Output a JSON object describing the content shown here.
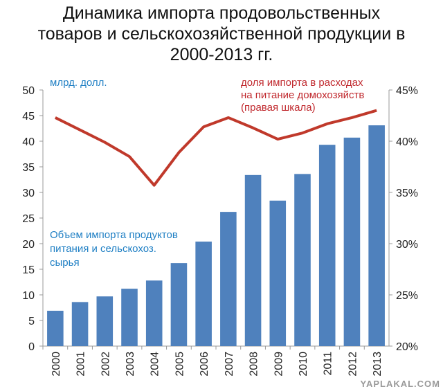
{
  "chart_data": {
    "type": "bar+line",
    "title": "Динамика импорта продовольственных товаров и сельскохозяйственной продукции в 2000-2013 гг.",
    "categories": [
      "2000",
      "2001",
      "2002",
      "2003",
      "2004",
      "2005",
      "2006",
      "2007",
      "2008",
      "2009",
      "2010",
      "2011",
      "2012",
      "2013"
    ],
    "left_axis": {
      "label": "млрд. долл.",
      "range": [
        0,
        50
      ],
      "ticks": [
        "0",
        "5",
        "10",
        "15",
        "20",
        "25",
        "30",
        "35",
        "40",
        "45",
        "50"
      ]
    },
    "right_axis": {
      "range": [
        20,
        45
      ],
      "ticks": [
        "20%",
        "25%",
        "30%",
        "35%",
        "40%",
        "45%"
      ]
    },
    "series": [
      {
        "name": "Объем импорта продуктов питания и сельскохоз. сырья",
        "type": "bar",
        "axis": "left",
        "color": "#4f81bd",
        "values": [
          6.9,
          8.6,
          9.7,
          11.2,
          12.8,
          16.2,
          20.4,
          26.2,
          33.4,
          28.4,
          33.6,
          39.3,
          40.7,
          43.1
        ]
      },
      {
        "name": "доля импорта в расходах на питание домохозяйств (правая шкала)",
        "type": "line",
        "axis": "right",
        "color": "#c0392b",
        "values": [
          42.3,
          41.1,
          39.9,
          38.5,
          35.7,
          38.9,
          41.4,
          42.3,
          41.3,
          40.2,
          40.8,
          41.7,
          42.3,
          43.0
        ]
      }
    ],
    "annotations": {
      "left_unit": "млрд. долл.",
      "bar_label": [
        "Объем импорта продуктов",
        "питания и сельскохоз.",
        "сырья"
      ],
      "line_label": [
        "доля импорта в расходах",
        "на питание домохозяйств",
        "(правая шкала)"
      ]
    },
    "label_colors": {
      "bar": "#1f7fc4",
      "line": "#c0282d"
    },
    "grid": false,
    "watermark": "YAPLAKAL.COM"
  }
}
